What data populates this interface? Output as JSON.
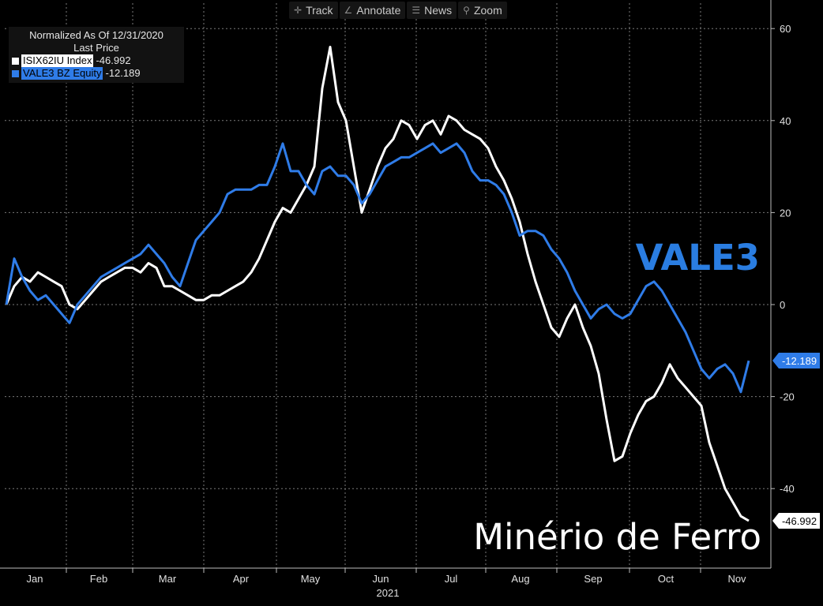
{
  "toolbar": {
    "track_label": "Track",
    "annotate_label": "Annotate",
    "news_label": "News",
    "zoom_label": "Zoom",
    "track_icon": "crosshair-icon",
    "annotate_icon": "pencil-icon",
    "news_icon": "news-icon",
    "zoom_icon": "magnifier-icon"
  },
  "legend": {
    "line1": "Normalized As Of 12/31/2020",
    "line2": "Last Price",
    "series": [
      {
        "name": "ISIX62IU Index",
        "value": "-46.992",
        "color": "#ffffff"
      },
      {
        "name": "VALE3 BZ Equity",
        "value": "-12.189",
        "color": "#2f7ce8"
      }
    ]
  },
  "annotations": {
    "vale": "VALE3",
    "minerio": "Minério de Ferro"
  },
  "chart_data": {
    "type": "line",
    "x_labels": [
      "Jan",
      "Feb",
      "Mar",
      "Apr",
      "May",
      "Jun",
      "Jul",
      "Aug",
      "Sep",
      "Oct",
      "Nov"
    ],
    "x_year_label": "2021",
    "y_ticks": [
      60,
      40,
      20,
      0,
      -20,
      -40
    ],
    "ylim": [
      -60,
      65
    ],
    "grid": true,
    "axis_side": "right",
    "last_value_tags": [
      {
        "series": "VALE3 BZ Equity",
        "text": "-12.189",
        "value": -12.189,
        "color": "#2f7ce8"
      },
      {
        "series": "ISIX62IU Index",
        "text": "-46.992",
        "value": -46.992,
        "color": "#ffffff"
      }
    ],
    "series": [
      {
        "name": "ISIX62IU Index",
        "color": "#ffffff",
        "values": [
          0,
          4,
          6,
          5,
          7,
          6,
          5,
          4,
          0,
          -1,
          1,
          3,
          5,
          6,
          7,
          8,
          8,
          7,
          9,
          8,
          4,
          4,
          3,
          2,
          1,
          1,
          2,
          2,
          3,
          4,
          5,
          7,
          10,
          14,
          18,
          21,
          20,
          23,
          26,
          30,
          47,
          56,
          44,
          40,
          30,
          20,
          25,
          30,
          34,
          36,
          40,
          39,
          36,
          39,
          40,
          37,
          41,
          40,
          38,
          37,
          36,
          34,
          30,
          27,
          23,
          18,
          11,
          5,
          0,
          -5,
          -7,
          -3,
          0,
          -5,
          -9,
          -15,
          -25,
          -34,
          -33,
          -28,
          -24,
          -21,
          -20,
          -17,
          -13,
          -16,
          -18,
          -20,
          -22,
          -30,
          -35,
          -40,
          -43,
          -46,
          -47
        ]
      },
      {
        "name": "VALE3 BZ Equity",
        "color": "#2f7ce8",
        "values": [
          0,
          10,
          6,
          3,
          1,
          2,
          0,
          -2,
          -4,
          0,
          2,
          4,
          6,
          7,
          8,
          9,
          10,
          11,
          13,
          11,
          9,
          6,
          4,
          9,
          14,
          16,
          18,
          20,
          24,
          25,
          25,
          25,
          26,
          26,
          30,
          35,
          29,
          29,
          26,
          24,
          29,
          30,
          28,
          28,
          26,
          22,
          24,
          27,
          30,
          31,
          32,
          32,
          33,
          34,
          35,
          33,
          34,
          35,
          33,
          29,
          27,
          27,
          26,
          24,
          20,
          15,
          16,
          16,
          15,
          12,
          10,
          7,
          3,
          0,
          -3,
          -1,
          0,
          -2,
          -3,
          -2,
          1,
          4,
          5,
          3,
          0,
          -3,
          -6,
          -10,
          -14,
          -16,
          -14,
          -13,
          -15,
          -19,
          -12.189
        ]
      }
    ]
  }
}
